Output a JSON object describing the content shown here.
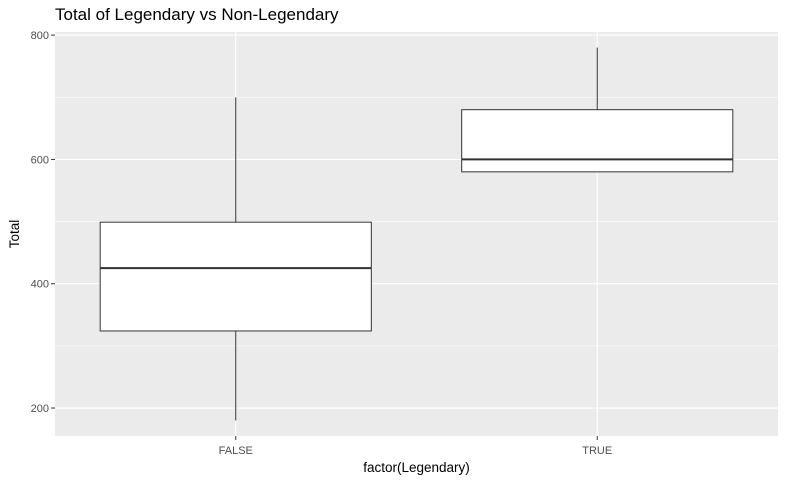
{
  "chart_data": {
    "type": "boxplot",
    "title": "Total of Legendary vs Non-Legendary",
    "xlabel": "factor(Legendary)",
    "ylabel": "Total",
    "categories": [
      "FALSE",
      "TRUE"
    ],
    "boxes": [
      {
        "category": "FALSE",
        "whisker_low": 180,
        "q1": 324,
        "median": 425,
        "q3": 499,
        "whisker_high": 700
      },
      {
        "category": "TRUE",
        "whisker_low": 580,
        "q1": 580,
        "median": 600,
        "q3": 680,
        "whisker_high": 780
      }
    ],
    "y_ticks": [
      200,
      400,
      600,
      800
    ],
    "y_tick_labels": [
      "200",
      "400",
      "600",
      "800"
    ],
    "ylim": [
      155,
      805
    ],
    "grid": true,
    "colors": {
      "panel": "#ebebeb",
      "grid": "#ffffff",
      "box_fill": "#ffffff",
      "box_stroke": "#333333",
      "whisker": "#333333"
    }
  }
}
